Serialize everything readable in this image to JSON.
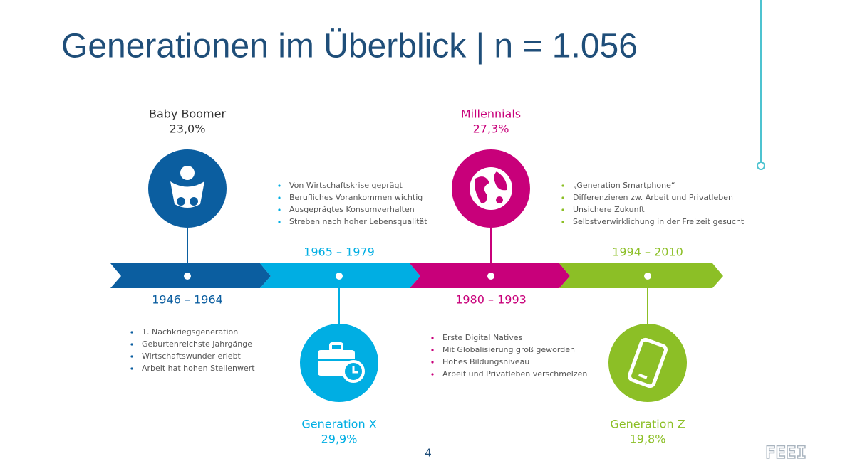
{
  "title": "Generationen im Überblick | n = 1.056",
  "generations": [
    {
      "name": "Baby Boomer",
      "share": "23,0%",
      "years": "1946 – 1964",
      "traits": [
        "1. Nachkriegsgeneration",
        "Geburtenreichste Jahrgänge",
        "Wirtschaftswunder erlebt",
        "Arbeit hat hohen Stellenwert"
      ]
    },
    {
      "name": "Generation X",
      "share": "29,9%",
      "years": "1965 – 1979",
      "traits": [
        "Von Wirtschaftskrise geprägt",
        "Berufliches Vorankommen wichtig",
        "Ausgeprägtes Konsumverhalten",
        "Streben nach hoher Lebensqualität"
      ]
    },
    {
      "name": "Millennials",
      "share": "27,3%",
      "years": "1980 – 1993",
      "traits": [
        "Erste Digital Natives",
        "Mit Globalisierung groß geworden",
        "Hohes Bildungsniveau",
        "Arbeit und Privatleben verschmelzen"
      ]
    },
    {
      "name": "Generation Z",
      "share": "19,8%",
      "years": "1994 – 2010",
      "traits": [
        "„Generation Smartphone“",
        "Differenzieren zw. Arbeit und Privatleben",
        "Unsichere Zukunft",
        "Selbstverwirklichung in der Freizeit gesucht"
      ]
    }
  ],
  "page_number": "4",
  "logo": "FEEI"
}
